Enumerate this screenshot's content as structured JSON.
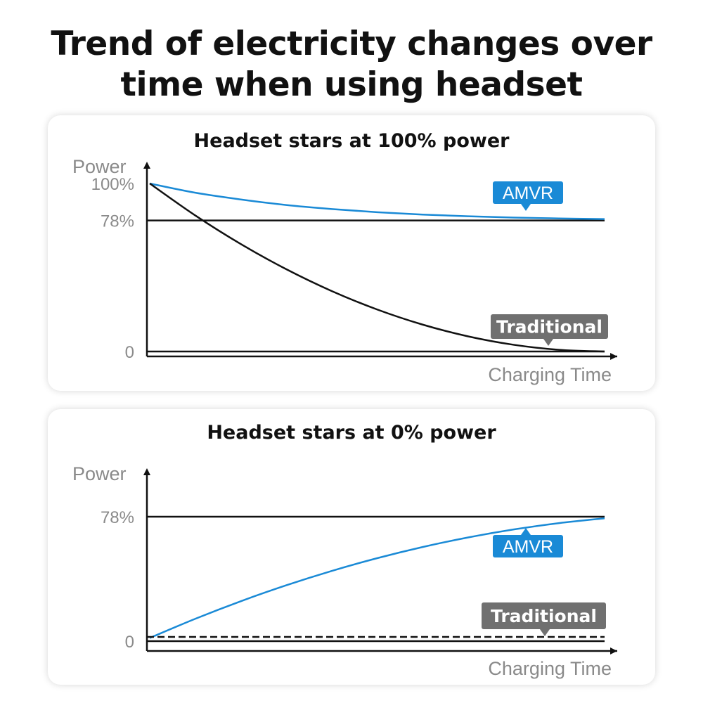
{
  "page": {
    "title_line1": "Trend of electricity changes over",
    "title_line2": "time when using headset"
  },
  "chart_data": [
    {
      "type": "line",
      "title": "Headset stars at 100% power",
      "ylabel": "Power",
      "xlabel": "Charging Time",
      "y_ticks": [
        {
          "label": "100%",
          "value": 100
        },
        {
          "label": "78%",
          "value": 78
        },
        {
          "label": "0",
          "value": 0
        }
      ],
      "ylim": [
        0,
        100
      ],
      "xlim": [
        0,
        10
      ],
      "reference_lines": [
        {
          "value": 78,
          "style": "solid",
          "color": "#111111"
        },
        {
          "value": 0,
          "style": "solid",
          "color": "#111111"
        }
      ],
      "series": [
        {
          "name": "AMVR",
          "color": "#1a8ad6",
          "label_style": "callout-down",
          "x": [
            0,
            1,
            2,
            3,
            4,
            5,
            6,
            7,
            8,
            9,
            10
          ],
          "y": [
            100,
            94.5,
            90.5,
            87.2,
            84.8,
            82.9,
            81.5,
            80.5,
            79.7,
            79.2,
            78.8
          ]
        },
        {
          "name": "Traditional",
          "color": "#111111",
          "label_style": "callout-down",
          "x": [
            0,
            1,
            2,
            3,
            4,
            5,
            6,
            7,
            8,
            9,
            10
          ],
          "y": [
            100,
            81,
            64,
            49,
            36,
            25,
            16,
            9,
            4,
            1,
            0
          ]
        }
      ]
    },
    {
      "type": "line",
      "title": "Headset stars at 0% power",
      "ylabel": "Power",
      "xlabel": "Charging Time",
      "y_ticks": [
        {
          "label": "78%",
          "value": 78
        },
        {
          "label": "0",
          "value": 0
        }
      ],
      "ylim": [
        0,
        100
      ],
      "xlim": [
        0,
        10
      ],
      "reference_lines": [
        {
          "value": 78,
          "style": "solid",
          "color": "#111111"
        },
        {
          "value": 0,
          "style": "solid",
          "color": "#111111"
        }
      ],
      "series": [
        {
          "name": "AMVR",
          "color": "#1a8ad6",
          "label_style": "callout-up",
          "x": [
            0,
            1,
            2,
            3,
            4,
            5,
            6,
            7,
            8,
            9,
            10
          ],
          "y": [
            2,
            14,
            25,
            35,
            44,
            52,
            59,
            65,
            70,
            74,
            77
          ]
        },
        {
          "name": "Traditional",
          "color": "#111111",
          "label_style": "callout-down",
          "dashed": true,
          "x": [
            0,
            10
          ],
          "y": [
            0,
            0
          ]
        }
      ]
    }
  ],
  "colors": {
    "amvr_badge": "#1a8ad6",
    "traditional_badge": "#707070",
    "axis": "#111111",
    "axis_text": "#8a8a8a"
  }
}
